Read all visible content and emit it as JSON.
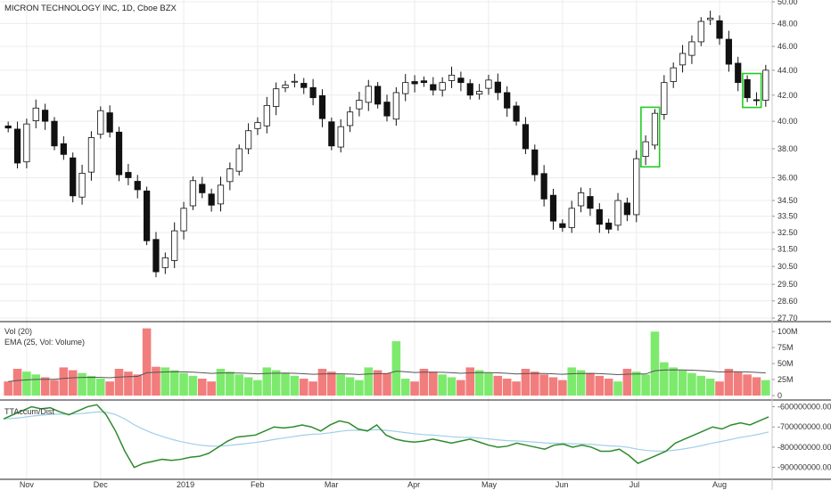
{
  "header": {
    "symbol_line": "MICRON TECHNOLOGY INC, 1D, Cboe BZX"
  },
  "panes": {
    "volume_label": "Vol (20)",
    "ema_label": "EMA (25, Vol: Volume)",
    "accum_label": "TTAccum/Dist"
  },
  "colors": {
    "up": "#7dea6e",
    "down": "#f27d7d",
    "candle_stroke": "#111111",
    "ema_line": "#555555",
    "accum_line": "#2e8b2e",
    "accum_signal": "#9fcfe8",
    "highlight_box": "#22cc22",
    "grid": "#ececec",
    "separator": "#222222"
  },
  "chart_data": [
    {
      "type": "candlestick",
      "title": "MICRON TECHNOLOGY INC, 1D, Cboe BZX",
      "y_scale": "log",
      "ylim": [
        27.7,
        50.0
      ],
      "y_ticks": [
        "50.00",
        "48.00",
        "46.00",
        "44.00",
        "42.00",
        "40.00",
        "38.00",
        "36.00",
        "34.50",
        "33.50",
        "32.50",
        "31.50",
        "30.50",
        "29.50",
        "28.60",
        "27.70"
      ],
      "x_ticks": [
        "Nov",
        "Dec",
        "2019",
        "Feb",
        "Mar",
        "Apr",
        "May",
        "Jun",
        "Jul",
        "Aug"
      ],
      "approx_closes": [
        39.5,
        37.0,
        39.8,
        41.0,
        40.0,
        38.2,
        37.6,
        34.8,
        36.3,
        38.8,
        40.8,
        39.2,
        36.2,
        36.0,
        35.2,
        32.0,
        30.2,
        31.0,
        32.6,
        34.0,
        35.8,
        35.0,
        34.2,
        35.5,
        36.6,
        38.0,
        39.3,
        39.9,
        41.2,
        42.5,
        42.8,
        43.1,
        42.6,
        41.8,
        40.2,
        38.2,
        39.6,
        40.7,
        41.6,
        42.7,
        41.3,
        40.4,
        42.2,
        43.0,
        42.9,
        43.0,
        42.4,
        43.0,
        43.6,
        43.0,
        42.0,
        42.3,
        43.2,
        42.2,
        41.0,
        40.0,
        38.0,
        36.2,
        34.6,
        33.2,
        32.8,
        34.0,
        35.0,
        34.0,
        33.0,
        32.7,
        34.5,
        33.6,
        37.3,
        38.5,
        40.6,
        43.0,
        44.2,
        45.4,
        46.4,
        48.2,
        48.5,
        46.7,
        44.5,
        43.0,
        41.8,
        41.6,
        44.0
      ],
      "highlighted_boxes": [
        "early July",
        "early August"
      ],
      "grid": true
    },
    {
      "type": "bar",
      "title": "Vol (20)",
      "series": [
        {
          "name": "Vol (20)",
          "style": "bars colored by candle direction"
        },
        {
          "name": "EMA (25, Vol: Volume)",
          "style": "line"
        }
      ],
      "y_ticks": [
        "100M",
        "75M",
        "50M",
        "25M",
        "0"
      ],
      "ylim": [
        0,
        110000000
      ],
      "peaks_millions": {
        "Dec": 105,
        "Apr": 85,
        "Jun": 100
      }
    },
    {
      "type": "line",
      "title": "TTAccum/Dist",
      "series": [
        {
          "name": "TTAccum/Dist"
        }
      ],
      "y_ticks": [
        "-600000000.00",
        "-700000000.00",
        "-800000000.00",
        "-900000000.00"
      ],
      "ylim": [
        -950000000,
        -580000000
      ],
      "approx_values_millions": [
        -660,
        -640,
        -620,
        -600,
        -610,
        -605,
        -625,
        -640,
        -620,
        -600,
        -590,
        -640,
        -720,
        -820,
        -900,
        -880,
        -870,
        -860,
        -865,
        -860,
        -850,
        -845,
        -830,
        -800,
        -770,
        -750,
        -745,
        -740,
        -720,
        -700,
        -705,
        -700,
        -690,
        -700,
        -720,
        -690,
        -670,
        -680,
        -710,
        -720,
        -690,
        -740,
        -760,
        -770,
        -775,
        -770,
        -760,
        -770,
        -780,
        -770,
        -760,
        -775,
        -790,
        -800,
        -795,
        -780,
        -790,
        -800,
        -810,
        -790,
        -785,
        -800,
        -790,
        -800,
        -820,
        -820,
        -810,
        -840,
        -880,
        -860,
        -840,
        -820,
        -780,
        -760,
        -740,
        -720,
        -700,
        -710,
        -690,
        -680,
        -690,
        -670,
        -650
      ]
    }
  ]
}
